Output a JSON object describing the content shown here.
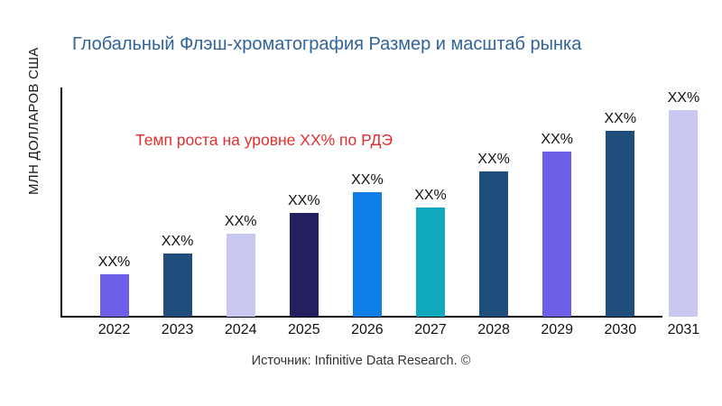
{
  "title": "Глобальный Флэш-хроматография Размер и масштаб рынка",
  "annotation": "Темп роста на уровне XX% по РДЭ",
  "source": "Источник: Infinitive Data Research. ©",
  "colors": {
    "title_text": "#2F6399",
    "annotation_text": "#E12F2F",
    "axis": "#000000",
    "background": "#FFFFFF"
  },
  "chart_data": {
    "type": "bar",
    "title": "Глобальный Флэш-хроматография Размер и масштаб рынка",
    "xlabel": "",
    "ylabel": "МЛН ДОЛЛАРОВ США",
    "categories": [
      "2022",
      "2023",
      "2024",
      "2025",
      "2026",
      "2027",
      "2028",
      "2029",
      "2030",
      "2031"
    ],
    "values": [
      47,
      70,
      92,
      115,
      138,
      121,
      161,
      183,
      206,
      229
    ],
    "values_note": "numeric axis values not shown in chart; bars carry placeholder data labels",
    "value_labels": [
      "XX%",
      "XX%",
      "XX%",
      "XX%",
      "XX%",
      "XX%",
      "XX%",
      "XX%",
      "XX%",
      "XX%"
    ],
    "bar_colors": [
      "#6C5FE8",
      "#1F4E7C",
      "#C9C8F0",
      "#23205F",
      "#0F7FE8",
      "#10A8BC",
      "#1F4E7C",
      "#6C5FE8",
      "#1F4E7C",
      "#C9C8F0"
    ],
    "annotation": "Темп роста на уровне XX% по РДЭ",
    "grid": false,
    "legend": "none",
    "yaxis_tick_labels": "none"
  }
}
